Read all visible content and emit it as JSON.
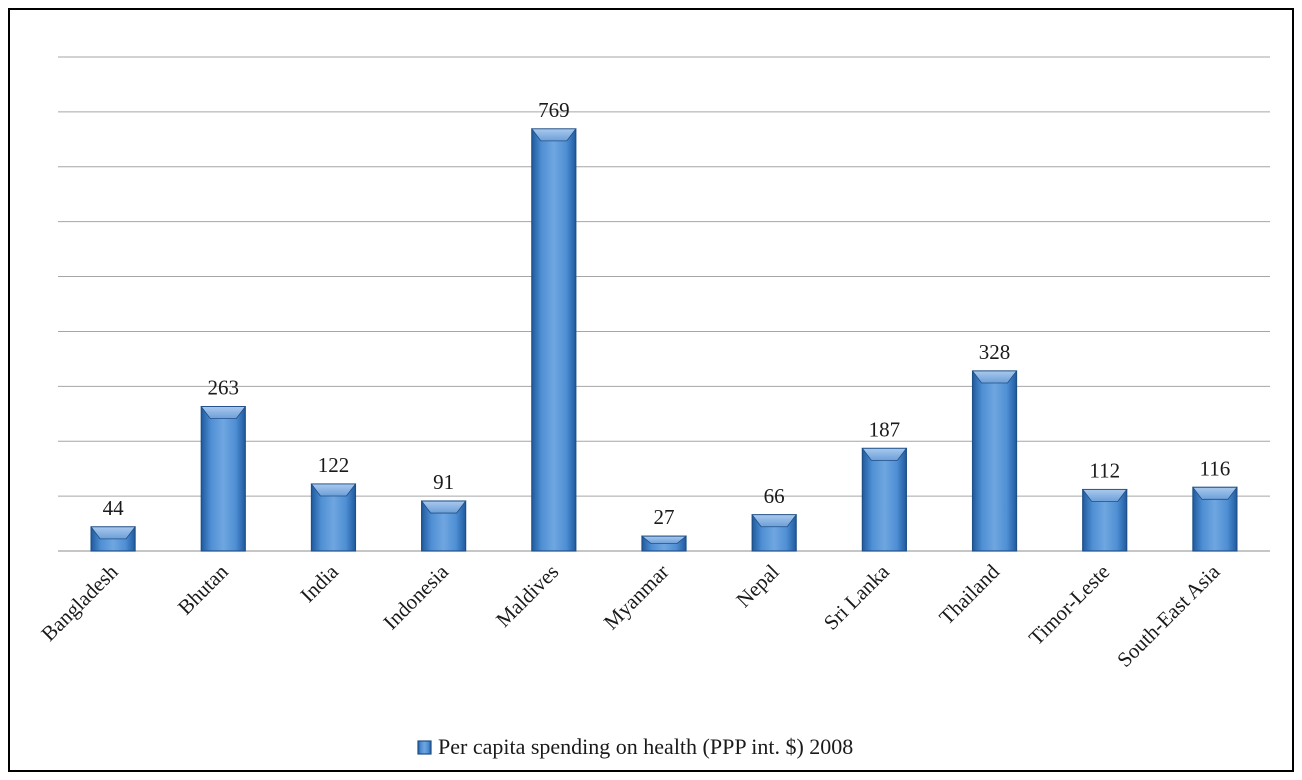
{
  "chart_data": {
    "type": "bar",
    "title": "",
    "xlabel": "",
    "ylabel": "",
    "categories": [
      "Bangladesh",
      "Bhutan",
      "India",
      "Indonesia",
      "Maldives",
      "Myanmar",
      "Nepal",
      "Sri Lanka",
      "Thailand",
      "Timor-Leste",
      "South-East Asia"
    ],
    "series": [
      {
        "name": "Per capita spending on health (PPP int. $) 2008",
        "values": [
          44,
          263,
          122,
          91,
          769,
          27,
          66,
          187,
          328,
          112,
          116
        ]
      }
    ],
    "ylim": [
      0,
      900
    ],
    "grid": true,
    "gridline_step": 100,
    "legend_position": "bottom",
    "bar_color": "#3f7fc4",
    "bar_edge_color": "#1f4f87"
  }
}
